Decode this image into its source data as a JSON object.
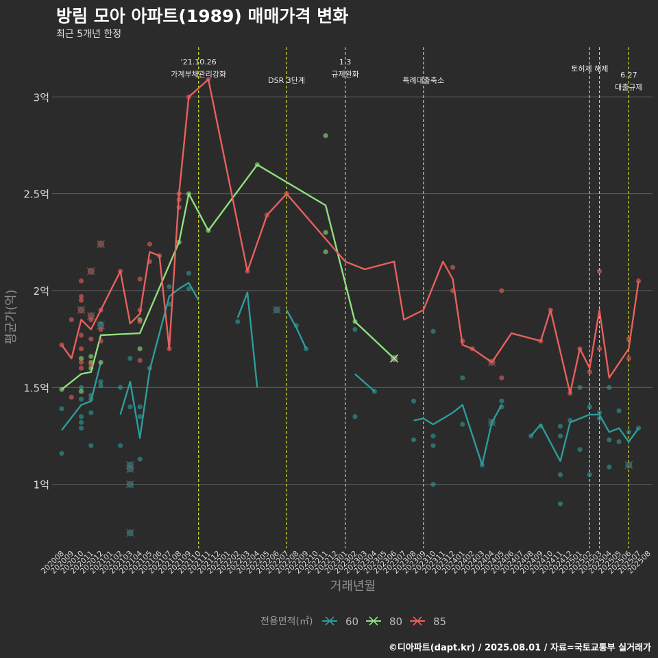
{
  "title": "방림 모아 아파트(1989) 매매가격 변화",
  "subtitle": "최근 5개년 한정",
  "caption": "©디아파트(dapt.kr) / 2025.08.01 / 자료=국토교통부 실거래가",
  "chart_data": {
    "type": "line",
    "xlabel": "거래년월",
    "ylabel": "평균가(억)",
    "ylim": [
      0.67,
      3.27
    ],
    "yticks": [
      1,
      1.5,
      2,
      2.5,
      3
    ],
    "ytick_labels": [
      "1억",
      "1.5억",
      "2억",
      "2.5억",
      "3억"
    ],
    "categories": [
      "202008",
      "202009",
      "202010",
      "202011",
      "202012",
      "202101",
      "202102",
      "202103",
      "202104",
      "202105",
      "202106",
      "202107",
      "202108",
      "202109",
      "202110",
      "202111",
      "202112",
      "202201",
      "202202",
      "202203",
      "202204",
      "202205",
      "202206",
      "202207",
      "202208",
      "202209",
      "202210",
      "202211",
      "202212",
      "202301",
      "202302",
      "202303",
      "202304",
      "202305",
      "202306",
      "202307",
      "202308",
      "202309",
      "202310",
      "202311",
      "202312",
      "202401",
      "202402",
      "202403",
      "202404",
      "202405",
      "202406",
      "202407",
      "202408",
      "202409",
      "202410",
      "202411",
      "202412",
      "202501",
      "202502",
      "202503",
      "202504",
      "202505",
      "202506",
      "202507",
      "202508"
    ],
    "legend_title": "전용면적(㎡)",
    "legend_position": "bottom",
    "grid": true,
    "colors": {
      "60": "#2e9c9a",
      "80": "#8fe07c",
      "85": "#e8605c",
      "event_line": "#d8e028",
      "background": "#2b2b2c",
      "grid": "#606060"
    },
    "events": [
      {
        "x": "202110",
        "label": "'21.10.26\n가계부채관리강화",
        "level": 1
      },
      {
        "x": "202207",
        "label": "DSR 3단계",
        "level": 2
      },
      {
        "x": "202301",
        "label": "1.3\n규제완화",
        "level": 1
      },
      {
        "x": "202309",
        "label": "특례대출축소",
        "level": 2
      },
      {
        "x": "202502",
        "label": "토허제 해제",
        "level": 1
      },
      {
        "x": "202503",
        "label": "",
        "level": 1
      },
      {
        "x": "202506",
        "label": "6.27\n대출규제",
        "level": 1.6
      }
    ],
    "series": [
      {
        "name": "60",
        "lines": [
          [
            [
              "202008",
              1.28
            ],
            [
              "202010",
              1.41
            ],
            [
              "202011",
              1.43
            ],
            [
              "202012",
              1.63
            ]
          ],
          [
            [
              "202102",
              1.36
            ],
            [
              "202103",
              1.53
            ],
            [
              "202104",
              1.24
            ],
            [
              "202105",
              1.59
            ],
            [
              "202107",
              1.97
            ],
            [
              "202108",
              2.01
            ],
            [
              "202109",
              2.04
            ],
            [
              "202110",
              1.95
            ]
          ],
          [
            [
              "202202",
              1.86
            ],
            [
              "202203",
              1.99
            ],
            [
              "202204",
              1.5
            ]
          ],
          [
            [
              "202207",
              1.9
            ],
            [
              "202208",
              1.81
            ],
            [
              "202209",
              1.7
            ]
          ],
          [
            [
              "202302",
              1.57
            ],
            [
              "202304",
              1.48
            ]
          ],
          [
            [
              "202308",
              1.33
            ],
            [
              "202309",
              1.34
            ],
            [
              "202310",
              1.31
            ],
            [
              "202312",
              1.37
            ],
            [
              "202401",
              1.41
            ],
            [
              "202403",
              1.1
            ],
            [
              "202404",
              1.32
            ],
            [
              "202405",
              1.41
            ]
          ],
          [
            [
              "202408",
              1.25
            ],
            [
              "202409",
              1.31
            ],
            [
              "202411",
              1.12
            ],
            [
              "202412",
              1.32
            ],
            [
              "202501",
              1.34
            ],
            [
              "202502",
              1.36
            ],
            [
              "202503",
              1.36
            ],
            [
              "202504",
              1.27
            ],
            [
              "202505",
              1.29
            ],
            [
              "202506",
              1.22
            ],
            [
              "202507",
              1.29
            ]
          ]
        ],
        "points": [
          [
            "202008",
            1.39
          ],
          [
            "202008",
            1.16
          ],
          [
            "202010",
            1.29
          ],
          [
            "202010",
            1.32
          ],
          [
            "202010",
            1.35
          ],
          [
            "202010",
            1.44
          ],
          [
            "202010",
            1.5
          ],
          [
            "202011",
            1.2
          ],
          [
            "202011",
            1.37
          ],
          [
            "202011",
            1.44
          ],
          [
            "202011",
            1.46
          ],
          [
            "202012",
            1.51
          ],
          [
            "202012",
            1.53
          ],
          [
            "202012",
            1.83
          ],
          [
            "202102",
            1.2
          ],
          [
            "202102",
            1.5
          ],
          [
            "202103",
            1.4
          ],
          [
            "202103",
            1.65
          ],
          [
            "202104",
            1.13
          ],
          [
            "202104",
            1.35
          ],
          [
            "202104",
            1.4
          ],
          [
            "202105",
            1.6
          ],
          [
            "202107",
            2.02
          ],
          [
            "202107",
            1.93
          ],
          [
            "202109",
            2.09
          ],
          [
            "202109",
            2.01
          ],
          [
            "202202",
            1.84
          ],
          [
            "202208",
            1.82
          ],
          [
            "202209",
            1.7
          ],
          [
            "202302",
            1.8
          ],
          [
            "202302",
            1.35
          ],
          [
            "202304",
            1.48
          ],
          [
            "202308",
            1.43
          ],
          [
            "202308",
            1.23
          ],
          [
            "202310",
            1.79
          ],
          [
            "202310",
            1.2
          ],
          [
            "202310",
            1.25
          ],
          [
            "202310",
            1.0
          ],
          [
            "202401",
            1.55
          ],
          [
            "202401",
            1.31
          ],
          [
            "202403",
            1.1
          ],
          [
            "202405",
            1.43
          ],
          [
            "202405",
            1.4
          ],
          [
            "202408",
            1.25
          ],
          [
            "202409",
            1.3
          ],
          [
            "202411",
            1.05
          ],
          [
            "202411",
            0.9
          ],
          [
            "202411",
            1.3
          ],
          [
            "202411",
            1.25
          ],
          [
            "202412",
            1.33
          ],
          [
            "202501",
            1.5
          ],
          [
            "202501",
            1.18
          ],
          [
            "202502",
            1.4
          ],
          [
            "202502",
            1.05
          ],
          [
            "202503",
            1.37
          ],
          [
            "202503",
            1.34
          ],
          [
            "202504",
            1.5
          ],
          [
            "202504",
            1.23
          ],
          [
            "202504",
            1.09
          ],
          [
            "202505",
            1.38
          ],
          [
            "202505",
            1.22
          ],
          [
            "202506",
            1.27
          ],
          [
            "202507",
            1.29
          ]
        ],
        "crosses": [
          [
            "202012",
            1.82
          ],
          [
            "202103",
            1.1
          ],
          [
            "202103",
            1.08
          ],
          [
            "202103",
            1.0
          ],
          [
            "202103",
            0.75
          ],
          [
            "202206",
            1.9
          ],
          [
            "202404",
            1.32
          ],
          [
            "202506",
            1.1
          ]
        ]
      },
      {
        "name": "80",
        "lines": [
          [
            [
              "202008",
              1.49
            ],
            [
              "202010",
              1.57
            ],
            [
              "202011",
              1.58
            ],
            [
              "202012",
              1.77
            ],
            [
              "202104",
              1.78
            ],
            [
              "202108",
              2.25
            ],
            [
              "202109",
              2.5
            ],
            [
              "202111",
              2.31
            ],
            [
              "202204",
              2.65
            ],
            [
              "202211",
              2.44
            ],
            [
              "202302",
              1.84
            ],
            [
              "202306",
              1.65
            ]
          ]
        ],
        "points": [
          [
            "202008",
            1.49
          ],
          [
            "202010",
            1.65
          ],
          [
            "202010",
            1.48
          ],
          [
            "202011",
            1.66
          ],
          [
            "202011",
            1.63
          ],
          [
            "202011",
            1.6
          ],
          [
            "202012",
            1.63
          ],
          [
            "202104",
            1.7
          ],
          [
            "202104",
            1.85
          ],
          [
            "202108",
            2.25
          ],
          [
            "202109",
            2.5
          ],
          [
            "202111",
            2.31
          ],
          [
            "202204",
            2.65
          ],
          [
            "202211",
            2.8
          ],
          [
            "202211",
            2.3
          ],
          [
            "202211",
            2.2
          ],
          [
            "202302",
            1.84
          ]
        ],
        "crosses": [
          [
            "202306",
            1.65
          ]
        ]
      },
      {
        "name": "85",
        "lines": [
          [
            [
              "202008",
              1.72
            ],
            [
              "202009",
              1.65
            ],
            [
              "202010",
              1.85
            ],
            [
              "202011",
              1.8
            ],
            [
              "202012",
              1.9
            ],
            [
              "202102",
              2.1
            ],
            [
              "202103",
              1.83
            ],
            [
              "202104",
              1.88
            ],
            [
              "202105",
              2.2
            ],
            [
              "202106",
              2.18
            ],
            [
              "202107",
              1.7
            ],
            [
              "202108",
              2.5
            ],
            [
              "202109",
              3.0
            ],
            [
              "202111",
              3.09
            ],
            [
              "202203",
              2.1
            ],
            [
              "202205",
              2.39
            ],
            [
              "202207",
              2.5
            ],
            [
              "202301",
              2.15
            ],
            [
              "202303",
              2.11
            ],
            [
              "202306",
              2.15
            ],
            [
              "202307",
              1.85
            ],
            [
              "202309",
              1.9
            ],
            [
              "202311",
              2.15
            ],
            [
              "202312",
              2.06
            ],
            [
              "202401",
              1.72
            ],
            [
              "202402",
              1.7
            ],
            [
              "202404",
              1.63
            ],
            [
              "202406",
              1.78
            ],
            [
              "202409",
              1.74
            ],
            [
              "202410",
              1.9
            ],
            [
              "202412",
              1.47
            ],
            [
              "202501",
              1.7
            ],
            [
              "202502",
              1.6
            ],
            [
              "202503",
              1.9
            ],
            [
              "202504",
              1.55
            ],
            [
              "202506",
              1.7
            ],
            [
              "202507",
              2.05
            ]
          ]
        ],
        "points": [
          [
            "202008",
            1.72
          ],
          [
            "202009",
            1.45
          ],
          [
            "202009",
            1.85
          ],
          [
            "202010",
            2.05
          ],
          [
            "202010",
            1.97
          ],
          [
            "202010",
            1.95
          ],
          [
            "202010",
            1.77
          ],
          [
            "202010",
            1.7
          ],
          [
            "202010",
            1.63
          ],
          [
            "202010",
            1.6
          ],
          [
            "202011",
            1.85
          ],
          [
            "202011",
            1.75
          ],
          [
            "202011",
            1.62
          ],
          [
            "202012",
            1.8
          ],
          [
            "202012",
            1.74
          ],
          [
            "202012",
            1.9
          ],
          [
            "202102",
            2.1
          ],
          [
            "202104",
            2.06
          ],
          [
            "202104",
            1.9
          ],
          [
            "202104",
            1.84
          ],
          [
            "202104",
            1.64
          ],
          [
            "202105",
            2.24
          ],
          [
            "202105",
            2.15
          ],
          [
            "202106",
            2.18
          ],
          [
            "202107",
            1.7
          ],
          [
            "202108",
            2.5
          ],
          [
            "202108",
            2.47
          ],
          [
            "202108",
            2.43
          ],
          [
            "202109",
            3.0
          ],
          [
            "202111",
            3.09
          ],
          [
            "202203",
            2.1
          ],
          [
            "202205",
            2.39
          ],
          [
            "202207",
            2.5
          ],
          [
            "202312",
            2.12
          ],
          [
            "202312",
            2.0
          ],
          [
            "202401",
            1.74
          ],
          [
            "202402",
            1.7
          ],
          [
            "202405",
            2.0
          ],
          [
            "202405",
            1.55
          ],
          [
            "202409",
            1.74
          ],
          [
            "202410",
            1.9
          ],
          [
            "202412",
            1.47
          ],
          [
            "202501",
            1.7
          ],
          [
            "202502",
            1.58
          ],
          [
            "202503",
            2.1
          ],
          [
            "202503",
            1.7
          ],
          [
            "202506",
            1.75
          ],
          [
            "202506",
            1.65
          ],
          [
            "202507",
            2.05
          ]
        ],
        "crosses": [
          [
            "202010",
            1.9
          ],
          [
            "202011",
            2.1
          ],
          [
            "202011",
            1.87
          ],
          [
            "202012",
            2.24
          ],
          [
            "202404",
            1.63
          ]
        ]
      }
    ]
  }
}
